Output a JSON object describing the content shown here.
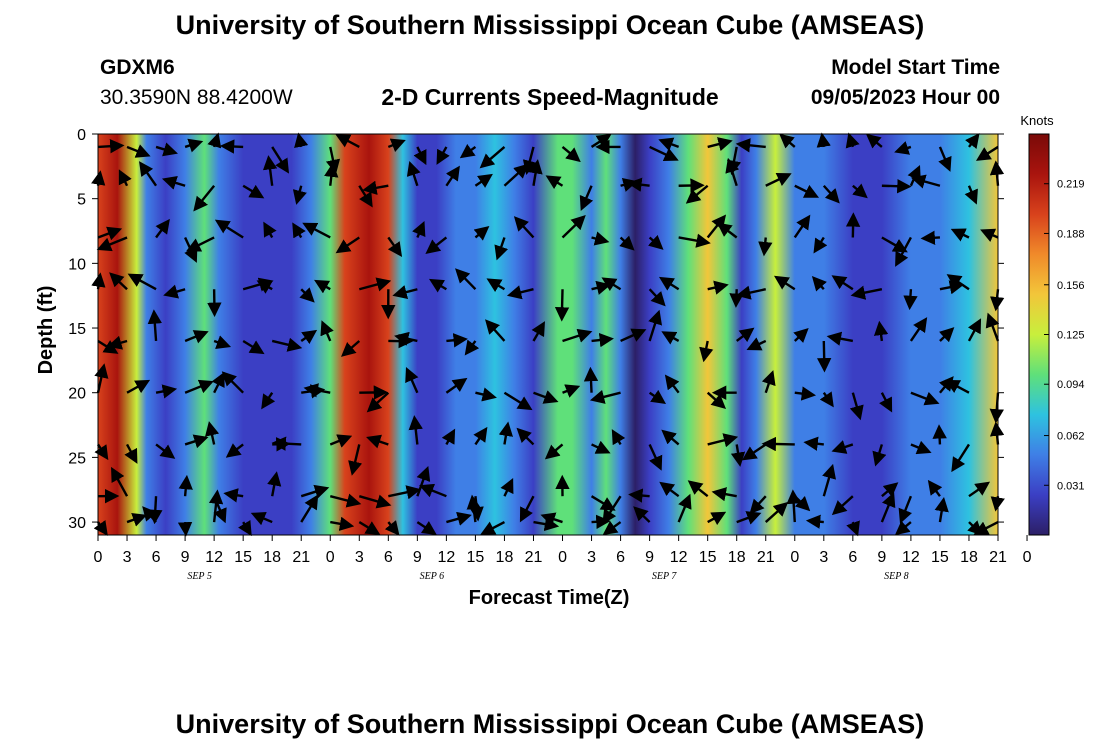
{
  "header": {
    "title": "University of Southern Mississippi Ocean Cube (AMSEAS)",
    "station": "GDXM6",
    "coords": "30.3590N  88.4200W",
    "subtitle": "2-D Currents Speed-Magnitude",
    "start_label": "Model Start Time",
    "start_value": "09/05/2023 Hour 00"
  },
  "footer": {
    "title": "University of Southern Mississippi Ocean Cube (AMSEAS)"
  },
  "colors": {
    "scale": [
      "#2c1f66",
      "#3b3fc4",
      "#3f7fe6",
      "#2ec2e0",
      "#5fe07a",
      "#c8ef3c",
      "#f2c63a",
      "#f08a2a",
      "#d8421c",
      "#a9140e",
      "#7a0a08"
    ],
    "arrow": "#000000"
  },
  "chart_data": {
    "type": "heatmap",
    "xlabel": "Forecast Time(Z)",
    "ylabel": "Depth (ft)",
    "x_hours": [
      0,
      93
    ],
    "ylim": [
      0,
      31
    ],
    "y_ticks": [
      0,
      5,
      10,
      15,
      20,
      25,
      30
    ],
    "x_tick_labels": [
      "0",
      "3",
      "6",
      "9",
      "12",
      "15",
      "18",
      "21",
      "0",
      "3",
      "6",
      "9",
      "12",
      "15",
      "18",
      "21",
      "0",
      "3",
      "6",
      "9",
      "12",
      "15",
      "18",
      "21",
      "0",
      "3",
      "6",
      "9",
      "12",
      "15",
      "18",
      "21",
      "0"
    ],
    "date_labels": [
      {
        "label": "SEP 5",
        "hour": 10.5
      },
      {
        "label": "SEP 6",
        "hour": 34.5
      },
      {
        "label": "SEP 7",
        "hour": 58.5
      },
      {
        "label": "SEP 8",
        "hour": 82.5
      }
    ],
    "colorbar": {
      "units": "Knots",
      "ticks": [
        0.031,
        0.062,
        0.094,
        0.125,
        0.156,
        0.188,
        0.219
      ],
      "range": [
        0.0,
        0.25
      ]
    },
    "speed_profile_knots": [
      {
        "hour": 0,
        "speed": 0.21
      },
      {
        "hour": 2,
        "speed": 0.22
      },
      {
        "hour": 4,
        "speed": 0.12
      },
      {
        "hour": 5,
        "speed": 0.06
      },
      {
        "hour": 7,
        "speed": 0.03
      },
      {
        "hour": 9,
        "speed": 0.06
      },
      {
        "hour": 11,
        "speed": 0.1
      },
      {
        "hour": 12.5,
        "speed": 0.06
      },
      {
        "hour": 15,
        "speed": 0.03
      },
      {
        "hour": 17.5,
        "speed": 0.02
      },
      {
        "hour": 20,
        "speed": 0.02
      },
      {
        "hour": 22,
        "speed": 0.04
      },
      {
        "hour": 24,
        "speed": 0.09
      },
      {
        "hour": 25.5,
        "speed": 0.2
      },
      {
        "hour": 28,
        "speed": 0.23
      },
      {
        "hour": 30,
        "speed": 0.21
      },
      {
        "hour": 31.5,
        "speed": 0.07
      },
      {
        "hour": 33,
        "speed": 0.03
      },
      {
        "hour": 35,
        "speed": 0.025
      },
      {
        "hour": 37,
        "speed": 0.04
      },
      {
        "hour": 39,
        "speed": 0.06
      },
      {
        "hour": 41,
        "speed": 0.08
      },
      {
        "hour": 43,
        "speed": 0.05
      },
      {
        "hour": 45,
        "speed": 0.03
      },
      {
        "hour": 47.5,
        "speed": 0.09
      },
      {
        "hour": 49,
        "speed": 0.1
      },
      {
        "hour": 51,
        "speed": 0.06
      },
      {
        "hour": 52.5,
        "speed": 0.09
      },
      {
        "hour": 54,
        "speed": 0.04
      },
      {
        "hour": 55.5,
        "speed": 0.012
      },
      {
        "hour": 57,
        "speed": 0.03
      },
      {
        "hour": 59,
        "speed": 0.06
      },
      {
        "hour": 61,
        "speed": 0.09
      },
      {
        "hour": 63,
        "speed": 0.15
      },
      {
        "hour": 65,
        "speed": 0.1
      },
      {
        "hour": 66.5,
        "speed": 0.02
      },
      {
        "hour": 68,
        "speed": 0.04
      },
      {
        "hour": 70,
        "speed": 0.12
      },
      {
        "hour": 72,
        "speed": 0.06
      },
      {
        "hour": 75,
        "speed": 0.04
      },
      {
        "hour": 78,
        "speed": 0.03
      },
      {
        "hour": 81,
        "speed": 0.035
      },
      {
        "hour": 84,
        "speed": 0.04
      },
      {
        "hour": 87,
        "speed": 0.05
      },
      {
        "hour": 90,
        "speed": 0.08
      },
      {
        "hour": 93,
        "speed": 0.14
      }
    ],
    "vector_hours": [
      0,
      3,
      6,
      9,
      12,
      15,
      18,
      21,
      24,
      27,
      30,
      33,
      36,
      39,
      42,
      45,
      48,
      51,
      54,
      57,
      60,
      63,
      66,
      69,
      72,
      75,
      78,
      81,
      84,
      87,
      90,
      93
    ],
    "vector_depths_ft": [
      1,
      4,
      8,
      12,
      16,
      20,
      24,
      28,
      30
    ]
  }
}
